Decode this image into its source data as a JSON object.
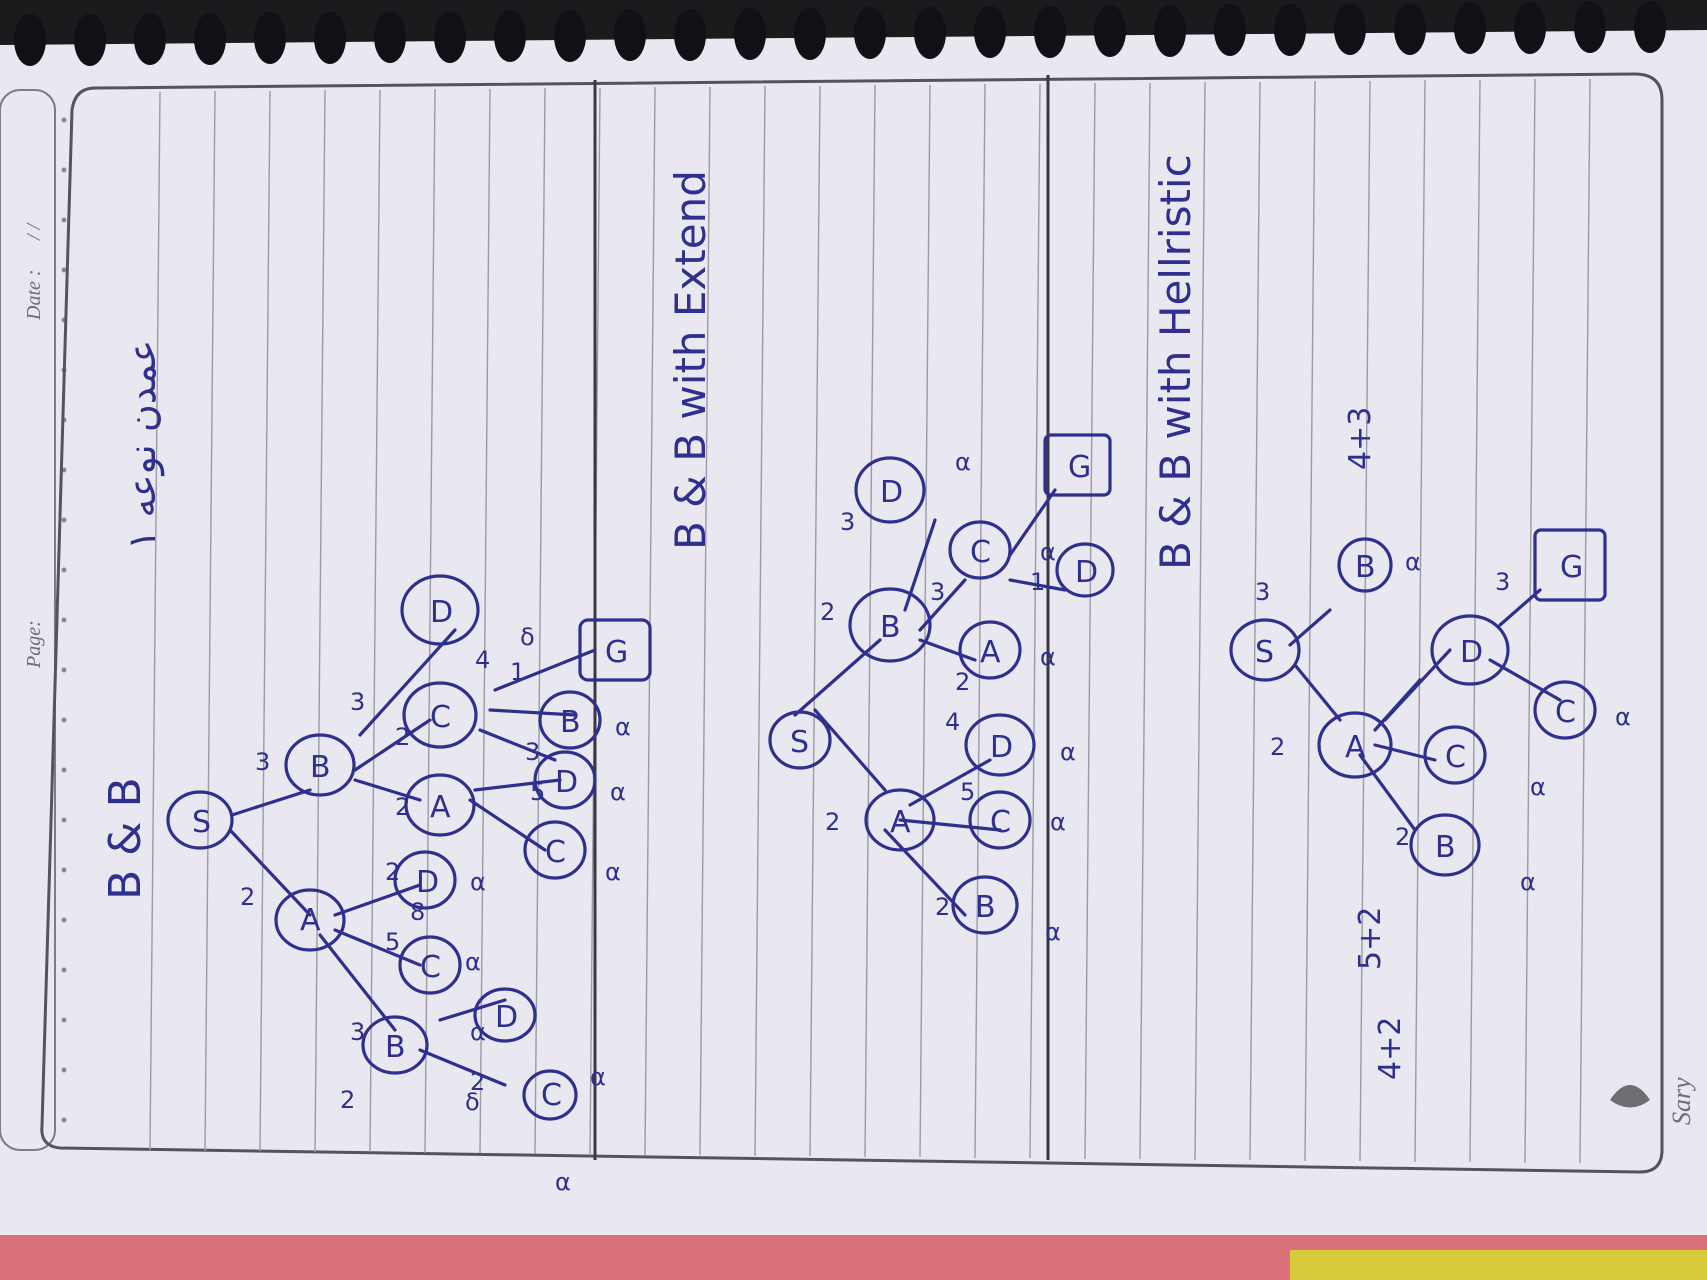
{
  "header": {
    "page_label": "Page:",
    "date_label": "Date :",
    "date_value": "/    /"
  },
  "sections": [
    {
      "title": "B & B",
      "annotation": "ﻋﻤﺪﻥ ﻧﻮﻋﻪ ١"
    },
    {
      "title": "B & B with Extend"
    },
    {
      "title": "B & B with Hellristic"
    }
  ],
  "tree1": {
    "nodes": [
      "S",
      "A",
      "B",
      "C",
      "D",
      "D",
      "B",
      "A",
      "C",
      "D",
      "G",
      "C",
      "D",
      "B",
      "C"
    ],
    "edge_labels": [
      "2",
      "3",
      "3",
      "2",
      "8",
      "2",
      "4",
      "2",
      "5",
      "3",
      "1",
      "2",
      "2",
      "3",
      "5"
    ],
    "marks": [
      "α",
      "α",
      "α",
      "α",
      "δ",
      "α",
      "α",
      "α",
      "α",
      "δ"
    ]
  },
  "tree2": {
    "nodes": [
      "S",
      "A",
      "B",
      "C",
      "D",
      "B",
      "D",
      "A",
      "C",
      "D",
      "G"
    ],
    "edge_labels": [
      "2",
      "2",
      "3",
      "5",
      "4",
      "2",
      "3",
      "2",
      "1"
    ],
    "marks": [
      "α",
      "α",
      "α",
      "α",
      "α",
      "α"
    ]
  },
  "tree3": {
    "nodes": [
      "S",
      "A",
      "B",
      "B",
      "C",
      "D",
      "C",
      "G"
    ],
    "edge_labels": [
      "2",
      "3",
      "2",
      "3"
    ],
    "marks": [
      "α",
      "α",
      "α",
      "α"
    ],
    "heuristics": [
      "4+3",
      "5+2",
      "4+2"
    ]
  },
  "brand": {
    "logo_text": "Sary"
  },
  "colors": {
    "ink": "#2f2f8f",
    "paper": "#e9e7ef",
    "binding": "#111016",
    "pink_cover": "#d9707a",
    "yellow_edge": "#d8c93a"
  }
}
